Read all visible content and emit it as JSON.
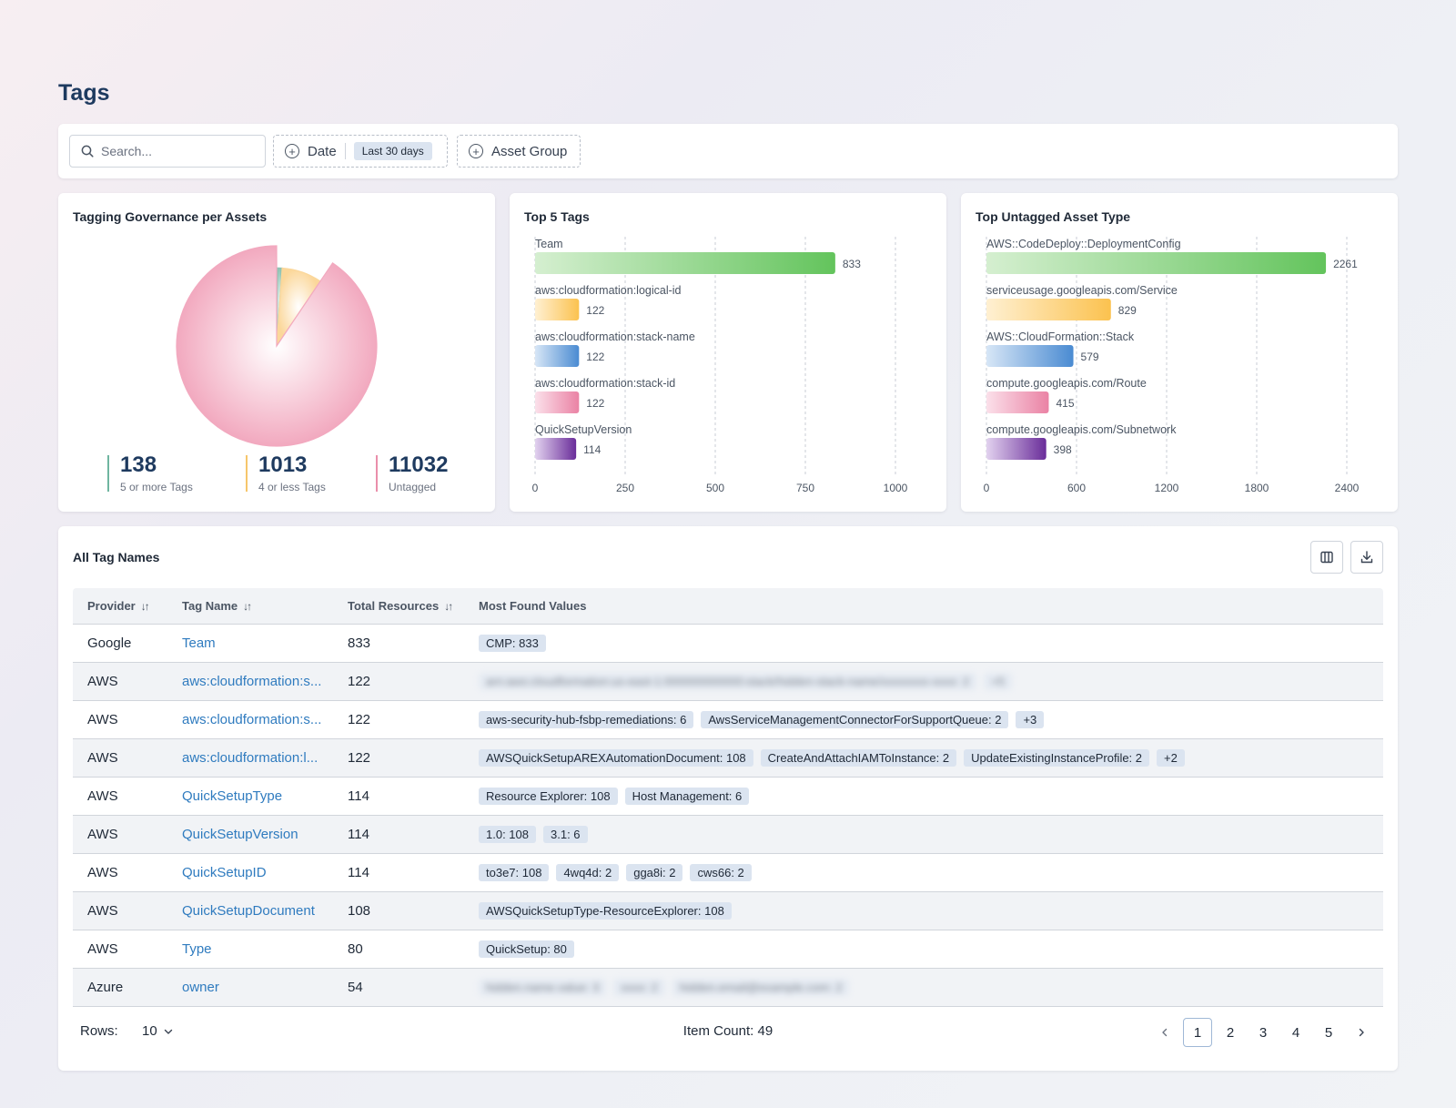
{
  "page": {
    "title": "Tags"
  },
  "filters": {
    "search_placeholder": "Search...",
    "date_label": "Date",
    "date_value": "Last 30 days",
    "asset_group_label": "Asset Group"
  },
  "governance": {
    "title": "Tagging Governance per Assets",
    "stats": [
      {
        "value": "138",
        "label": "5 or more Tags",
        "color": "#6fb5a0"
      },
      {
        "value": "1013",
        "label": "4 or less Tags",
        "color": "#f6c66b"
      },
      {
        "value": "11032",
        "label": "Untagged",
        "color": "#ea8fab"
      }
    ]
  },
  "top_tags": {
    "title": "Top 5 Tags"
  },
  "top_untagged": {
    "title": "Top Untagged Asset Type"
  },
  "chart_data": [
    {
      "type": "pie",
      "title": "Tagging Governance per Assets",
      "slices": [
        {
          "label": "5 or more Tags",
          "value": 138,
          "color": "#8fc3b4"
        },
        {
          "label": "4 or less Tags",
          "value": 1013,
          "color": "#fbd79a"
        },
        {
          "label": "Untagged",
          "value": 11032,
          "color": "#f2a9bf"
        }
      ]
    },
    {
      "type": "bar",
      "orientation": "horizontal",
      "title": "Top 5 Tags",
      "categories": [
        "Team",
        "aws:cloudformation:logical-id",
        "aws:cloudformation:stack-name",
        "aws:cloudformation:stack-id",
        "QuickSetupVersion"
      ],
      "values": [
        833,
        122,
        122,
        122,
        114
      ],
      "colors": [
        [
          "#d5efd0",
          "#63c45c"
        ],
        [
          "#fff0d2",
          "#fbc24f"
        ],
        [
          "#d7e6f6",
          "#4a8bd2"
        ],
        [
          "#fbe0ea",
          "#ea82a4"
        ],
        [
          "#e2d2ef",
          "#6a2d9a"
        ]
      ],
      "xticks": [
        0,
        250,
        500,
        750,
        1000
      ],
      "xlim": [
        0,
        1000
      ]
    },
    {
      "type": "bar",
      "orientation": "horizontal",
      "title": "Top Untagged Asset Type",
      "categories": [
        "AWS::CodeDeploy::DeploymentConfig",
        "serviceusage.googleapis.com/Service",
        "AWS::CloudFormation::Stack",
        "compute.googleapis.com/Route",
        "compute.googleapis.com/Subnetwork"
      ],
      "values": [
        2261,
        829,
        579,
        415,
        398
      ],
      "colors": [
        [
          "#d5efd0",
          "#63c45c"
        ],
        [
          "#fff0d2",
          "#fbc24f"
        ],
        [
          "#d7e6f6",
          "#4a8bd2"
        ],
        [
          "#fbe0ea",
          "#ea82a4"
        ],
        [
          "#e2d2ef",
          "#6a2d9a"
        ]
      ],
      "xticks": [
        0,
        600,
        1200,
        1800,
        2400
      ],
      "xlim": [
        0,
        2400
      ]
    }
  ],
  "table": {
    "title": "All Tag Names",
    "columns": [
      "Provider",
      "Tag Name",
      "Total Resources",
      "Most Found Values"
    ],
    "rows": [
      {
        "provider": "Google",
        "tag": "Team",
        "total": "833",
        "values": [
          "CMP: 833"
        ],
        "blurred": false
      },
      {
        "provider": "AWS",
        "tag": "aws:cloudformation:s...",
        "total": "122",
        "values": [
          "arn:aws:cloudformation:us-east-1:000000000000:stack/hidden-stack-name/xxxxxxxx-xxxx: 2",
          "+5"
        ],
        "blurred": true
      },
      {
        "provider": "AWS",
        "tag": "aws:cloudformation:s...",
        "total": "122",
        "values": [
          "aws-security-hub-fsbp-remediations: 6",
          "AwsServiceManagementConnectorForSupportQueue: 2",
          "+3"
        ],
        "blurred": false
      },
      {
        "provider": "AWS",
        "tag": "aws:cloudformation:l...",
        "total": "122",
        "values": [
          "AWSQuickSetupAREXAutomationDocument: 108",
          "CreateAndAttachIAMToInstance: 2",
          "UpdateExistingInstanceProfile: 2",
          "+2"
        ],
        "blurred": false
      },
      {
        "provider": "AWS",
        "tag": "QuickSetupType",
        "total": "114",
        "values": [
          "Resource Explorer: 108",
          "Host Management: 6"
        ],
        "blurred": false
      },
      {
        "provider": "AWS",
        "tag": "QuickSetupVersion",
        "total": "114",
        "values": [
          "1.0: 108",
          "3.1: 6"
        ],
        "blurred": false
      },
      {
        "provider": "AWS",
        "tag": "QuickSetupID",
        "total": "114",
        "values": [
          "to3e7: 108",
          "4wq4d: 2",
          "gga8i: 2",
          "cws66: 2"
        ],
        "blurred": false
      },
      {
        "provider": "AWS",
        "tag": "QuickSetupDocument",
        "total": "108",
        "values": [
          "AWSQuickSetupType-ResourceExplorer: 108"
        ],
        "blurred": false
      },
      {
        "provider": "AWS",
        "tag": "Type",
        "total": "80",
        "values": [
          "QuickSetup: 80"
        ],
        "blurred": false
      },
      {
        "provider": "Azure",
        "tag": "owner",
        "total": "54",
        "values": [
          "hidden.name.value: 3",
          "xxxx: 2",
          "hidden.email@example.com: 2"
        ],
        "blurred": true
      }
    ]
  },
  "footer": {
    "rows_label": "Rows:",
    "rows_value": "10",
    "item_count": "Item Count: 49",
    "pages": [
      "1",
      "2",
      "3",
      "4",
      "5"
    ],
    "current_page": "1"
  }
}
